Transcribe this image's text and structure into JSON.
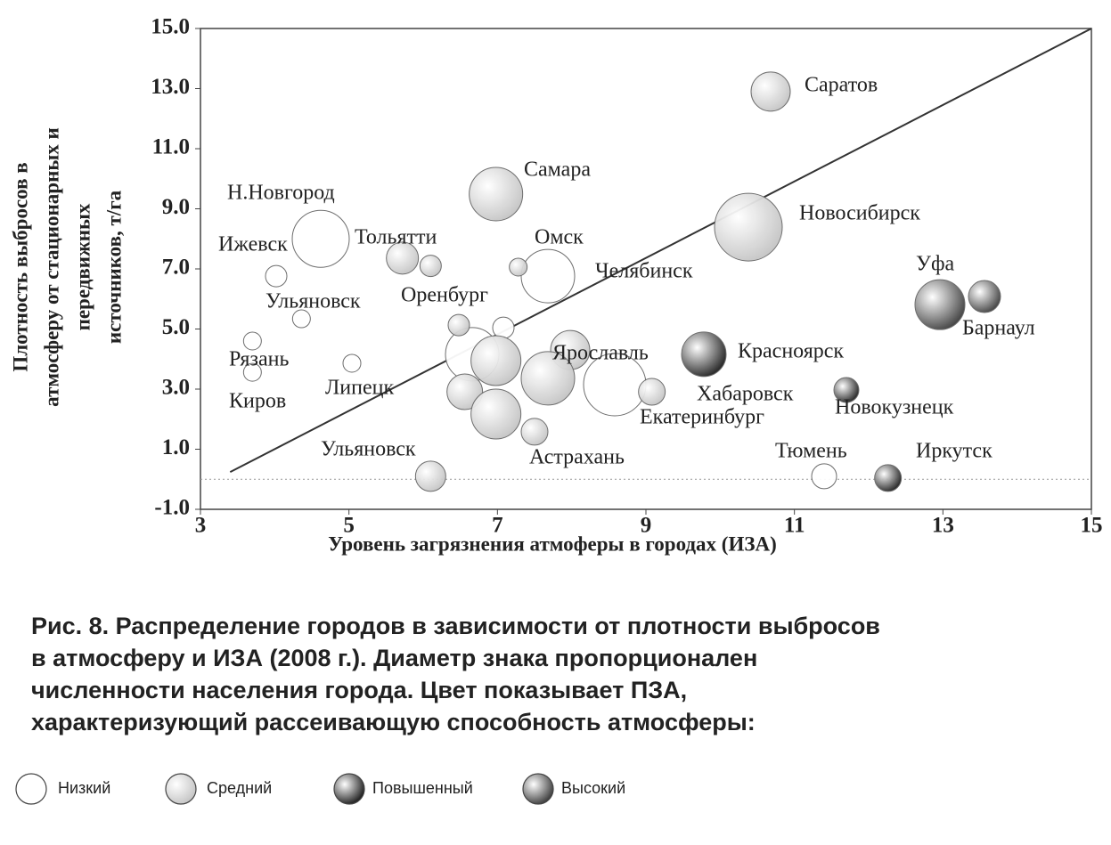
{
  "chart_data": {
    "type": "bubble",
    "x_label": "Уровень загрязнения атмоферы в городах (ИЗА)",
    "y_label_lines": [
      "Плотность выбросов в",
      "атмосферу от стационарных и",
      "передвижных",
      "источников, т/га"
    ],
    "xlim": [
      3,
      15
    ],
    "ylim": [
      -1,
      15
    ],
    "xticks": [
      3,
      5,
      7,
      9,
      11,
      13,
      15
    ],
    "yticks": [
      {
        "value": -1,
        "label": "-1.0"
      },
      {
        "value": 1,
        "label": "1.0"
      },
      {
        "value": 3,
        "label": "3.0"
      },
      {
        "value": 5,
        "label": "5.0"
      },
      {
        "value": 7,
        "label": "7.0"
      },
      {
        "value": 9,
        "label": "9.0"
      },
      {
        "value": 11,
        "label": "11.0"
      },
      {
        "value": 13,
        "label": "13.0"
      },
      {
        "value": 15,
        "label": "15.0"
      }
    ],
    "reference_line": {
      "x": [
        3.4,
        15
      ],
      "y": [
        0.24,
        15
      ]
    },
    "hline": 0,
    "series": [
      {
        "name": "Низкий",
        "color": "#ffffff",
        "x": [
          4.62,
          4.02,
          7.68,
          4.36,
          7.08,
          3.7,
          3.7,
          5.04,
          6.66,
          8.58,
          11.4
        ],
        "y": [
          8.0,
          6.76,
          6.76,
          5.34,
          5.04,
          4.6,
          3.56,
          3.86,
          4.16,
          3.15,
          0.1
        ],
        "sizes": [
          32,
          12,
          30,
          10,
          12,
          10,
          10,
          10,
          30,
          35,
          14
        ]
      },
      {
        "name": "Средний",
        "color": "#c4c4c4",
        "x": [
          10.68,
          6.98,
          10.38,
          5.72,
          6.1,
          7.28,
          6.48,
          6.98,
          7.98,
          7.68,
          9.08,
          6.56,
          6.98,
          7.5,
          6.1
        ],
        "y": [
          12.9,
          9.49,
          8.39,
          7.36,
          7.1,
          7.06,
          5.13,
          3.95,
          4.3,
          3.36,
          2.91,
          2.91,
          2.17,
          1.58,
          0.1
        ],
        "sizes": [
          22,
          30,
          38,
          18,
          12,
          10,
          12,
          28,
          22,
          30,
          15,
          20,
          28,
          15,
          17
        ]
      },
      {
        "name": "Повышенный",
        "color": "#1c1c1c",
        "x": [
          9.78,
          12.26,
          11.7
        ],
        "y": [
          4.16,
          0.04,
          2.97
        ],
        "sizes": [
          25,
          15,
          14
        ]
      },
      {
        "name": "Высокий",
        "color": "#3c3c3c",
        "x": [
          12.96,
          13.56
        ],
        "y": [
          5.81,
          6.08
        ],
        "sizes": [
          28,
          18
        ]
      }
    ],
    "annotations": [
      "Саратов",
      "Самара",
      "Новосибирск",
      "Н.Новгород",
      "Тольятти",
      "Ижевск",
      "Омск",
      "Челябинск",
      "Уфа",
      "Барнаул",
      "Ульяновск",
      "Оренбург",
      "Рязань",
      "Ярославль",
      "Красноярск",
      "Липецк",
      "Киров",
      "Хабаровск",
      "Новокузнецк",
      "Екатеринбург",
      "Ульяновск",
      "Астрахань",
      "Тюмень",
      "Иркутск"
    ],
    "caption_lines": [
      "Рис. 8. Распределение городов в зависимости от плотности выбросов",
      "в атмосферу и ИЗА (2008 г.). Диаметр знака пропорционален",
      "численности населения города. Цвет показывает ПЗА,",
      "характеризующий рассеивающую способность атмосферы:"
    ]
  }
}
